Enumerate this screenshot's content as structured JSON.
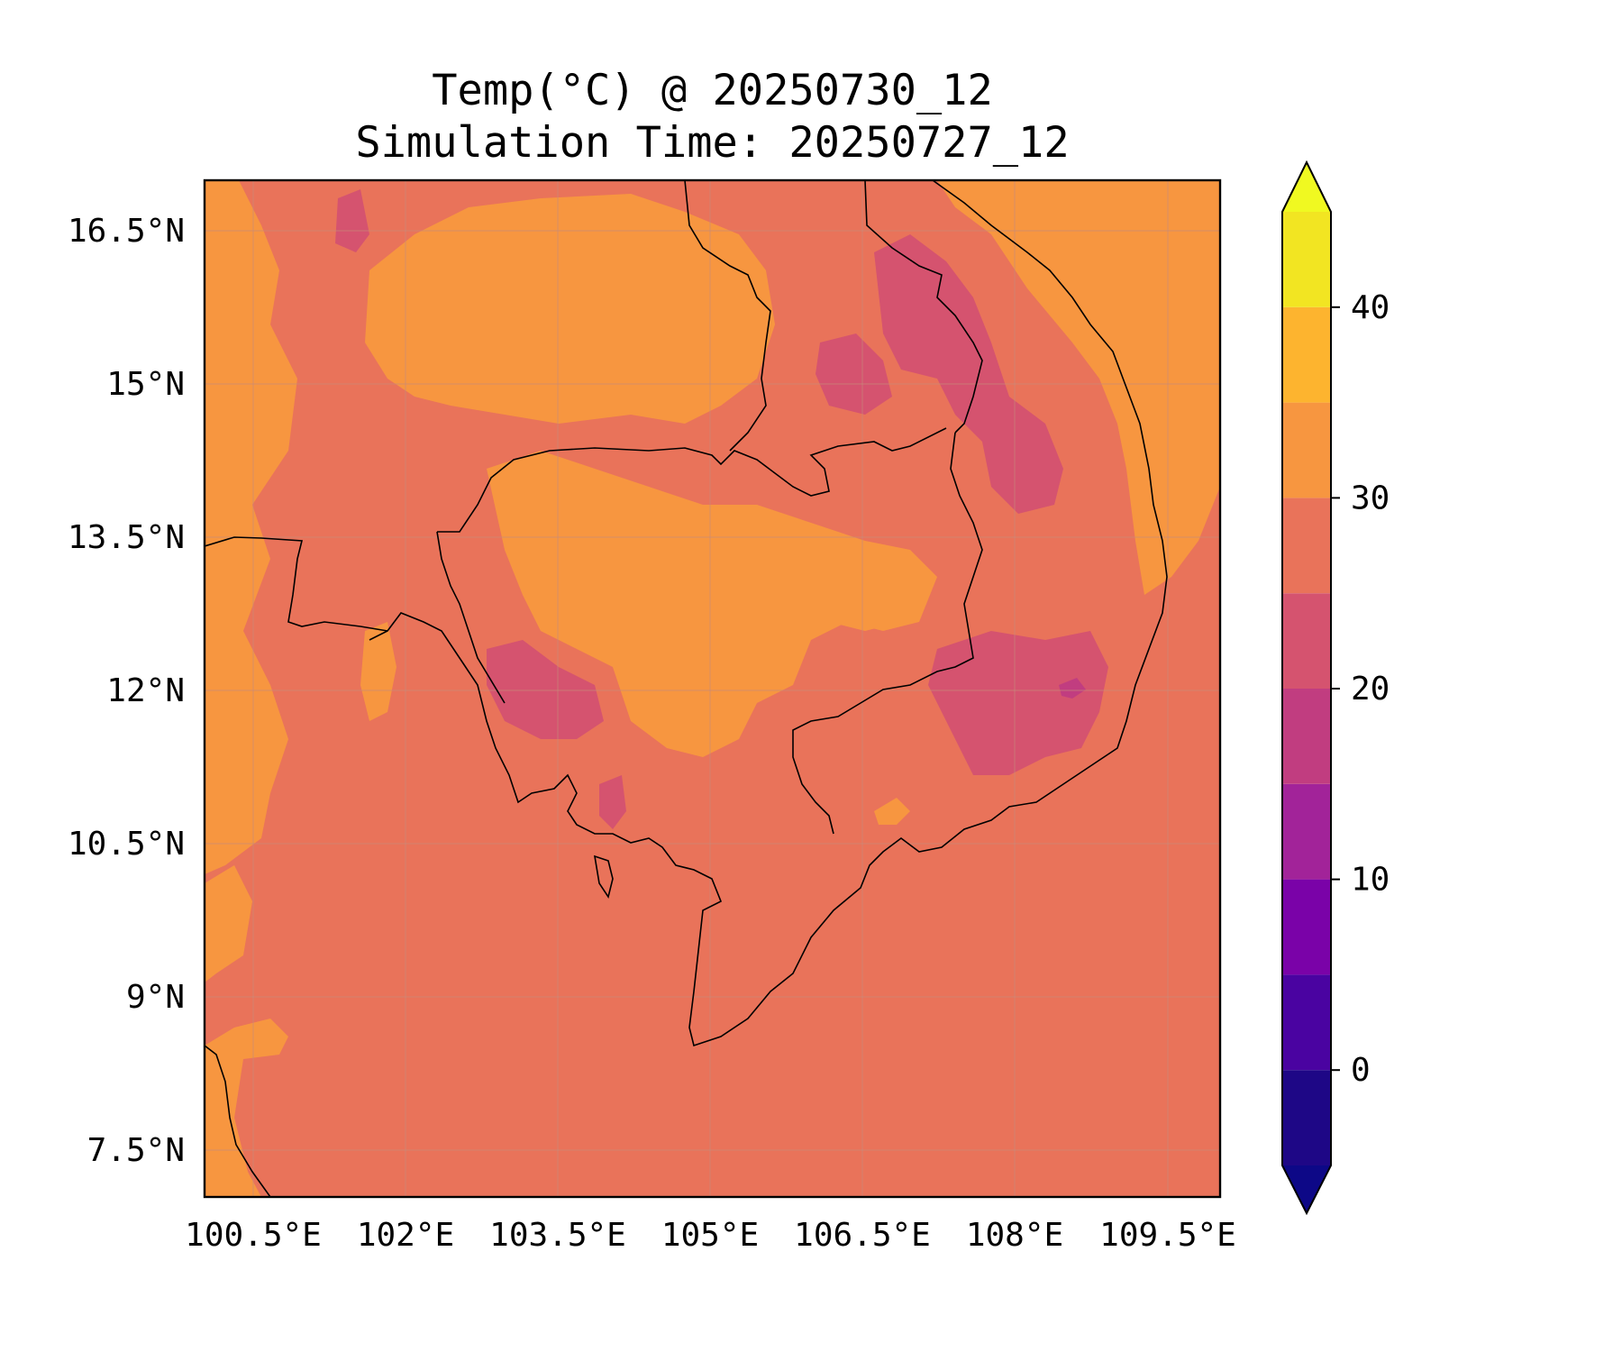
{
  "title": {
    "line1": "Temp(°C) @ 20250730_12",
    "line2": "Simulation Time: 20250727_12"
  },
  "map": {
    "lon_range": [
      100.0,
      110.0
    ],
    "lat_range": [
      7.1,
      17.1
    ],
    "gridlines": true,
    "x_ticks": [
      {
        "value": 100.5,
        "label": "100.5°E"
      },
      {
        "value": 102.0,
        "label": "102°E"
      },
      {
        "value": 103.5,
        "label": "103.5°E"
      },
      {
        "value": 105.0,
        "label": "105°E"
      },
      {
        "value": 106.5,
        "label": "106.5°E"
      },
      {
        "value": 108.0,
        "label": "108°E"
      },
      {
        "value": 109.5,
        "label": "109.5°E"
      }
    ],
    "y_ticks": [
      {
        "value": 16.5,
        "label": "16.5°N"
      },
      {
        "value": 15.0,
        "label": "15°N"
      },
      {
        "value": 13.5,
        "label": "13.5°N"
      },
      {
        "value": 12.0,
        "label": "12°N"
      },
      {
        "value": 10.5,
        "label": "10.5°N"
      },
      {
        "value": 9.0,
        "label": "9°N"
      },
      {
        "value": 7.5,
        "label": "7.5°N"
      }
    ],
    "background_level_color": "#e9735a",
    "features": [
      "coastlines",
      "country-borders"
    ]
  },
  "colorbar": {
    "extend": "both",
    "vmin": -5,
    "vmax": 45,
    "levels": [
      {
        "from": -5,
        "to": 0,
        "color": "#1e0786"
      },
      {
        "from": 0,
        "to": 5,
        "color": "#4a03a1"
      },
      {
        "from": 5,
        "to": 10,
        "color": "#7a02a8"
      },
      {
        "from": 10,
        "to": 15,
        "color": "#a22399"
      },
      {
        "from": 15,
        "to": 20,
        "color": "#c13d80"
      },
      {
        "from": 20,
        "to": 25,
        "color": "#d5536f"
      },
      {
        "from": 25,
        "to": 30,
        "color": "#e9735a"
      },
      {
        "from": 30,
        "to": 35,
        "color": "#f79640"
      },
      {
        "from": 35,
        "to": 40,
        "color": "#fdb42f"
      },
      {
        "from": 40,
        "to": 45,
        "color": "#f2e522"
      }
    ],
    "under_color": "#0d0887",
    "over_color": "#f0f921",
    "ticks": [
      {
        "value": 0,
        "label": "0"
      },
      {
        "value": 10,
        "label": "10"
      },
      {
        "value": 20,
        "label": "20"
      },
      {
        "value": 30,
        "label": "30"
      },
      {
        "value": 40,
        "label": "40"
      }
    ]
  }
}
